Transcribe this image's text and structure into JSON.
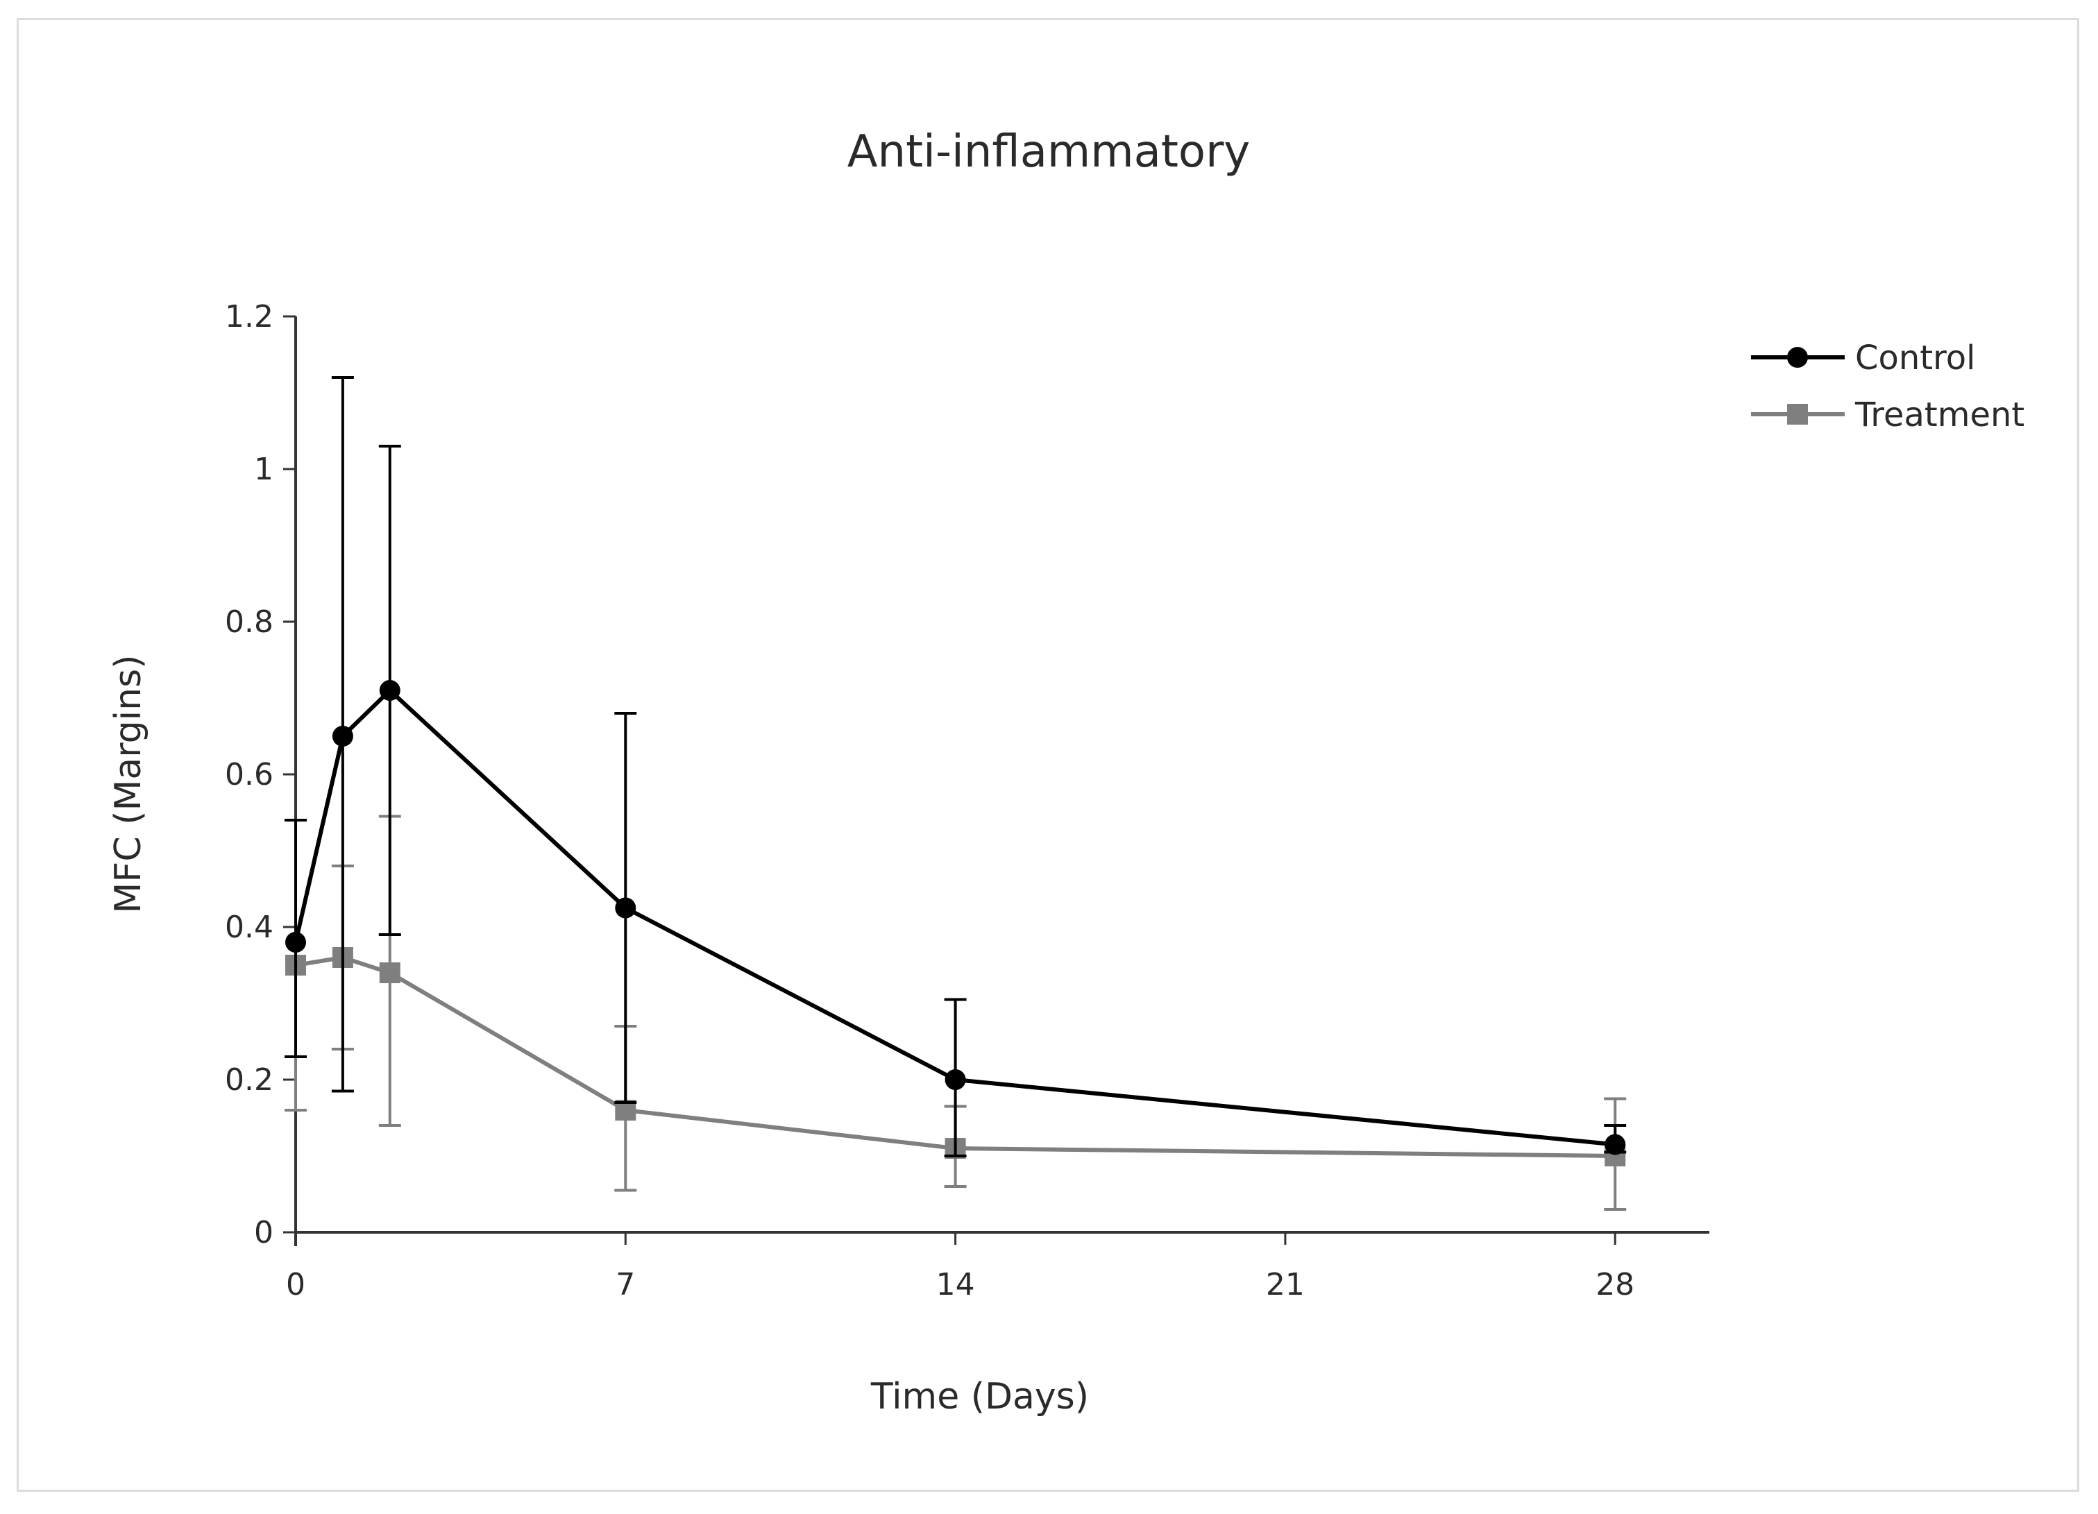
{
  "chart_data": {
    "type": "line",
    "title": "Anti-inflammatory",
    "xlabel": "Time (Days)",
    "ylabel": "MFC (Margins)",
    "xlim": [
      0,
      30
    ],
    "ylim": [
      0,
      1.2
    ],
    "xticks": [
      0,
      7,
      14,
      21,
      28
    ],
    "xtick_labels": [
      "0",
      "7",
      "14",
      "21",
      "28"
    ],
    "yticks": [
      0,
      0.2,
      0.4,
      0.6,
      0.8,
      1,
      1.2
    ],
    "ytick_labels": [
      "0",
      "0.2",
      "0.4",
      "0.6",
      "0.8",
      "1",
      "1.2"
    ],
    "legend_position": "top-right",
    "grid": false,
    "series": [
      {
        "name": "Control",
        "color": "#000000",
        "marker": "circle",
        "x": [
          0,
          1,
          2,
          7,
          14,
          28
        ],
        "y": [
          0.38,
          0.65,
          0.71,
          0.425,
          0.2,
          0.115
        ],
        "err_low": [
          0.23,
          0.185,
          0.39,
          0.17,
          0.1,
          0.105
        ],
        "err_high": [
          0.54,
          1.12,
          1.03,
          0.68,
          0.305,
          0.14
        ]
      },
      {
        "name": "Treatment",
        "color": "#7f7f7f",
        "marker": "square",
        "x": [
          0,
          1,
          2,
          7,
          14,
          28
        ],
        "y": [
          0.35,
          0.36,
          0.34,
          0.16,
          0.11,
          0.1
        ],
        "err_low": [
          0.16,
          0.24,
          0.14,
          0.055,
          0.06,
          0.03
        ],
        "err_high": [
          0.54,
          0.48,
          0.545,
          0.27,
          0.165,
          0.175
        ]
      }
    ]
  }
}
